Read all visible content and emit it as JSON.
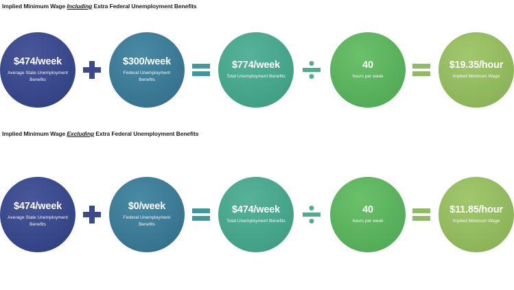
{
  "sections": [
    {
      "title_prefix": "Implied Minimum Wage ",
      "title_emphasis": "Including",
      "title_suffix": " Extra Federal Unemployment Benefits",
      "circles": [
        {
          "value": "$474/week",
          "label": "Average State Unemployment Benefits"
        },
        {
          "value": "$300/week",
          "label": "Federal Unemployment Benefits"
        },
        {
          "value": "$774/week",
          "label": "Total Unemployment Benefits"
        },
        {
          "value": "40",
          "label": "hours per week"
        },
        {
          "value": "$19.35/hour",
          "label": "Implied Minimum Wage"
        }
      ]
    },
    {
      "title_prefix": "Implied Minimum Wage ",
      "title_emphasis": "Excluding",
      "title_suffix": " Extra Federal Unemployment Benefits",
      "circles": [
        {
          "value": "$474/week",
          "label": "Average State Unemployment Benefits"
        },
        {
          "value": "$0/week",
          "label": "Federal Unemployment Benefits"
        },
        {
          "value": "$474/week",
          "label": "Total Unemployment Benefits"
        },
        {
          "value": "40",
          "label": "hours per week"
        },
        {
          "value": "$11.85/hour",
          "label": "Implied Minimum Wage"
        }
      ]
    }
  ],
  "operators": [
    "plus-icon",
    "equals-icon",
    "divide-icon",
    "equals-icon"
  ],
  "colors": {
    "circle_1": "#2c3d7e",
    "circle_2": "#2f6b87",
    "circle_3": "#3a997f",
    "circle_4": "#4ba552",
    "circle_5": "#84ad52",
    "plus": "#3a4a8c",
    "equals_1": "#3c9a9a",
    "divide": "#4fae88",
    "equals_2": "#8fbb62"
  }
}
